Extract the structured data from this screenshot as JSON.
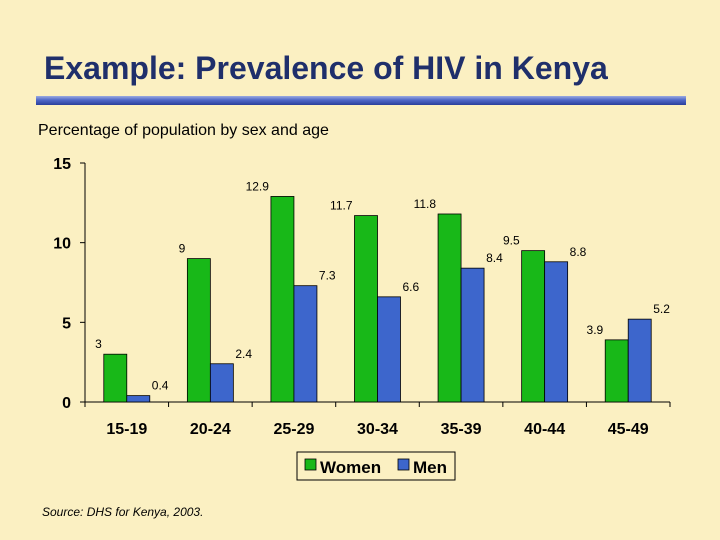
{
  "slide": {
    "title": "Example: Prevalence of HIV in Kenya",
    "subtitle": "Percentage of population by sex and age",
    "source": "Source: DHS for Kenya, 2003."
  },
  "colors": {
    "women": "#18b818",
    "men": "#3d66cc",
    "background": "#fbf0c2",
    "title": "#1f2f6b"
  },
  "chart_data": {
    "type": "bar",
    "title": "Percentage of population by sex and age",
    "xlabel": "",
    "ylabel": "",
    "ylim": [
      0,
      15
    ],
    "yticks": [
      0,
      5,
      10,
      15
    ],
    "categories": [
      "15-19",
      "20-24",
      "25-29",
      "30-34",
      "35-39",
      "40-44",
      "45-49"
    ],
    "series": [
      {
        "name": "Women",
        "values": [
          3,
          9,
          12.9,
          11.7,
          11.8,
          9.5,
          3.9
        ],
        "labels": [
          "3",
          "9",
          "12.9",
          "11.7",
          "11.8",
          "9.5",
          "3.9"
        ]
      },
      {
        "name": "Men",
        "values": [
          0.4,
          2.4,
          7.3,
          6.6,
          8.4,
          8.8,
          5.2
        ],
        "labels": [
          "0.4",
          "2.4",
          "7.3",
          "6.6",
          "8.4",
          "8.8",
          "5.2"
        ]
      }
    ],
    "legend": "bottom",
    "grid": false
  }
}
